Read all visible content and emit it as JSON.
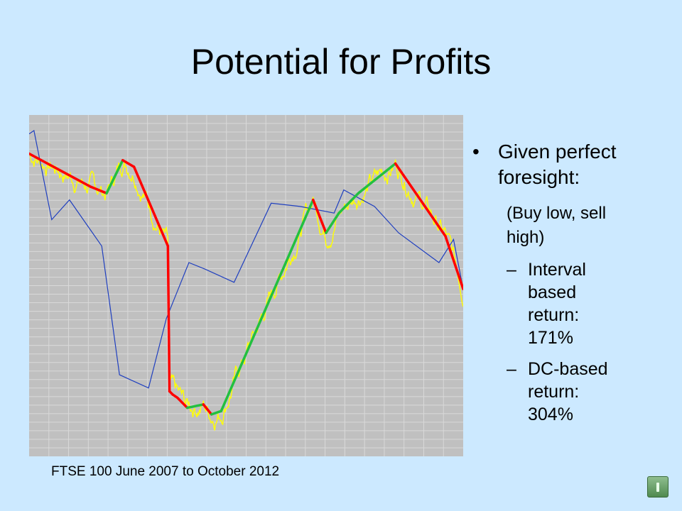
{
  "slide": {
    "title": "Potential for Profits",
    "bullets": {
      "main": "Given perfect foresight:",
      "parenthetical": "(Buy low, sell high)",
      "items": [
        {
          "label": "Interval based return: 171%"
        },
        {
          "label": "DC-based return: 304%"
        }
      ]
    },
    "caption": "FTSE 100 June 2007 to October 2012",
    "colors": {
      "background": "#cce9ff",
      "plot_background": "#c0c0c0",
      "gridline": "#d9d9d9",
      "price": "#ffff00",
      "interval": "#1f3fbf",
      "downtrend": "#ff0000",
      "uptrend": "#22c040"
    },
    "nav_icon": "home-icon"
  },
  "chart_data": {
    "type": "line",
    "title": "",
    "xlabel": "",
    "ylabel": "",
    "x_range": [
      "2007-06",
      "2012-10"
    ],
    "ylim": [
      0,
      100
    ],
    "grid": true,
    "legend": "none",
    "series": [
      {
        "role": "interval",
        "x": [
          0,
          3,
          14,
          25,
          45,
          56,
          74,
          85,
          99,
          109,
          127,
          150,
          168,
          189,
          195,
          214,
          229,
          254,
          263,
          269
        ],
        "y": [
          96,
          97,
          70,
          76,
          62,
          23,
          19,
          40,
          57,
          55,
          51,
          75,
          74,
          72,
          79,
          74,
          66,
          57,
          64,
          49
        ]
      },
      {
        "role": "directional-change",
        "x": [
          0,
          38,
          48,
          58,
          65,
          86,
          87,
          89,
          92,
          98,
          108,
          113,
          119,
          176,
          184,
          192,
          204,
          227,
          258,
          269
        ],
        "y": [
          90,
          80,
          78,
          88,
          86,
          62,
          18,
          17,
          16,
          13,
          14,
          11,
          12,
          76,
          66,
          72,
          78,
          87,
          65,
          49
        ]
      }
    ]
  }
}
